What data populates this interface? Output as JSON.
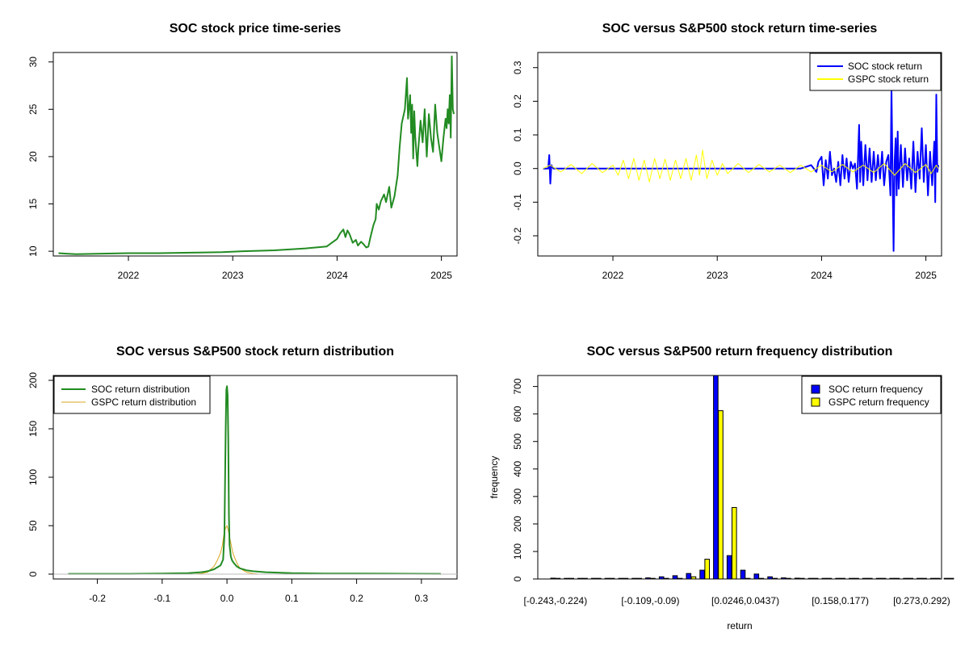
{
  "chart_data": [
    {
      "id": "p1",
      "type": "line",
      "title": "SOC stock price time-series",
      "xlabel": "",
      "ylabel": "",
      "xlim": [
        2021.28,
        2025.15
      ],
      "ylim": [
        9.5,
        31
      ],
      "xticks": [
        {
          "v": 2022,
          "label": "2022"
        },
        {
          "v": 2023,
          "label": "2023"
        },
        {
          "v": 2024,
          "label": "2024"
        },
        {
          "v": 2025,
          "label": "2025"
        }
      ],
      "yticks": [
        {
          "v": 10,
          "label": "10"
        },
        {
          "v": 15,
          "label": "15"
        },
        {
          "v": 20,
          "label": "20"
        },
        {
          "v": 25,
          "label": "25"
        },
        {
          "v": 30,
          "label": "30"
        }
      ],
      "series": [
        {
          "name": "SOC price",
          "color": "#228B22",
          "x": [
            2021.33,
            2021.4,
            2021.5,
            2021.75,
            2022.0,
            2022.3,
            2022.6,
            2022.9,
            2023.1,
            2023.4,
            2023.7,
            2023.9,
            2023.95,
            2024.0,
            2024.03,
            2024.06,
            2024.08,
            2024.1,
            2024.12,
            2024.15,
            2024.18,
            2024.2,
            2024.23,
            2024.25,
            2024.28,
            2024.3,
            2024.32,
            2024.35,
            2024.37,
            2024.38,
            2024.4,
            2024.42,
            2024.45,
            2024.47,
            2024.5,
            2024.52,
            2024.55,
            2024.58,
            2024.6,
            2024.62,
            2024.65,
            2024.67,
            2024.68,
            2024.7,
            2024.71,
            2024.72,
            2024.73,
            2024.74,
            2024.75,
            2024.77,
            2024.78,
            2024.8,
            2024.82,
            2024.84,
            2024.86,
            2024.88,
            2024.9,
            2024.92,
            2024.94,
            2024.96,
            2024.98,
            2025.0,
            2025.02,
            2025.04,
            2025.05,
            2025.06,
            2025.07,
            2025.08,
            2025.09,
            2025.1,
            2025.11,
            2025.12
          ],
          "y": [
            9.8,
            9.75,
            9.7,
            9.75,
            9.8,
            9.8,
            9.85,
            9.9,
            10.0,
            10.1,
            10.3,
            10.5,
            10.9,
            11.3,
            11.9,
            12.3,
            11.5,
            12.2,
            11.8,
            10.9,
            11.2,
            10.6,
            11.0,
            10.8,
            10.4,
            10.5,
            11.5,
            12.8,
            13.4,
            15.0,
            14.4,
            15.3,
            16.0,
            15.2,
            16.8,
            14.6,
            15.8,
            18.0,
            21.0,
            23.5,
            25.0,
            28.3,
            24.0,
            26.5,
            22.5,
            25.5,
            19.8,
            24.8,
            22.0,
            19.0,
            21.0,
            23.8,
            21.5,
            25.0,
            20.0,
            24.5,
            22.0,
            20.5,
            25.5,
            22.5,
            21.0,
            19.5,
            22.0,
            24.0,
            23.0,
            25.0,
            23.5,
            26.5,
            22.0,
            30.6,
            25.0,
            24.5
          ]
        }
      ]
    },
    {
      "id": "p2",
      "type": "line",
      "title": "SOC versus S&P500 stock return time-series",
      "xlabel": "",
      "ylabel": "",
      "xlim": [
        2021.28,
        2025.15
      ],
      "ylim": [
        -0.26,
        0.345
      ],
      "xticks": [
        {
          "v": 2022,
          "label": "2022"
        },
        {
          "v": 2023,
          "label": "2023"
        },
        {
          "v": 2024,
          "label": "2024"
        },
        {
          "v": 2025,
          "label": "2025"
        }
      ],
      "yticks": [
        {
          "v": -0.2,
          "label": "-0.2"
        },
        {
          "v": -0.1,
          "label": "-0.1"
        },
        {
          "v": 0.0,
          "label": "0.0"
        },
        {
          "v": 0.1,
          "label": "0.1"
        },
        {
          "v": 0.2,
          "label": "0.2"
        },
        {
          "v": 0.3,
          "label": "0.3"
        }
      ],
      "legend": {
        "position": "top-right",
        "entries": [
          {
            "label": "SOC stock return",
            "color": "#0000FF"
          },
          {
            "label": "GSPC stock return",
            "color": "#FFFF00"
          }
        ]
      },
      "series": [
        {
          "name": "SOC stock return",
          "color": "#0000FF",
          "width": 2,
          "x": [
            2021.33,
            2021.38,
            2021.39,
            2021.4,
            2021.41,
            2021.43,
            2021.5,
            2021.7,
            2022.0,
            2022.3,
            2022.6,
            2022.9,
            2023.2,
            2023.5,
            2023.8,
            2023.9,
            2023.95,
            2023.97,
            2024.0,
            2024.02,
            2024.04,
            2024.06,
            2024.08,
            2024.1,
            2024.12,
            2024.14,
            2024.16,
            2024.18,
            2024.2,
            2024.22,
            2024.24,
            2024.26,
            2024.28,
            2024.3,
            2024.32,
            2024.34,
            2024.36,
            2024.37,
            2024.38,
            2024.4,
            2024.42,
            2024.44,
            2024.46,
            2024.48,
            2024.5,
            2024.52,
            2024.54,
            2024.56,
            2024.58,
            2024.6,
            2024.62,
            2024.64,
            2024.66,
            2024.67,
            2024.68,
            2024.69,
            2024.7,
            2024.71,
            2024.72,
            2024.73,
            2024.74,
            2024.76,
            2024.78,
            2024.8,
            2024.82,
            2024.84,
            2024.86,
            2024.88,
            2024.9,
            2024.92,
            2024.94,
            2024.96,
            2024.98,
            2025.0,
            2025.02,
            2025.04,
            2025.06,
            2025.08,
            2025.09,
            2025.1,
            2025.11,
            2025.12
          ],
          "y": [
            0.0,
            0.0,
            0.04,
            -0.045,
            0.01,
            0.0,
            0.0,
            0.0,
            0.0,
            0.0,
            0.0,
            0.0,
            0.0,
            0.0,
            0.0,
            0.01,
            -0.01,
            0.02,
            0.035,
            -0.05,
            0.025,
            -0.03,
            0.05,
            -0.02,
            0.0,
            -0.04,
            0.02,
            -0.05,
            0.04,
            -0.03,
            0.03,
            -0.04,
            0.02,
            0.0,
            0.015,
            -0.06,
            0.13,
            -0.04,
            0.08,
            -0.05,
            0.07,
            -0.035,
            0.06,
            -0.04,
            0.05,
            -0.035,
            0.04,
            -0.03,
            0.05,
            -0.05,
            0.02,
            0.04,
            -0.08,
            0.24,
            -0.01,
            -0.245,
            0.02,
            0.09,
            -0.08,
            0.11,
            -0.06,
            0.07,
            -0.055,
            0.06,
            -0.035,
            0.03,
            -0.06,
            0.08,
            -0.07,
            0.05,
            -0.03,
            0.12,
            -0.04,
            0.07,
            -0.08,
            0.05,
            -0.05,
            0.08,
            -0.1,
            0.22,
            -0.01,
            0.01
          ]
        },
        {
          "name": "GSPC stock return",
          "color": "#FFFF00",
          "width": 1,
          "x": [
            2021.33,
            2021.4,
            2021.5,
            2021.6,
            2021.7,
            2021.8,
            2021.9,
            2022.0,
            2022.05,
            2022.1,
            2022.15,
            2022.2,
            2022.25,
            2022.3,
            2022.35,
            2022.4,
            2022.45,
            2022.5,
            2022.55,
            2022.6,
            2022.65,
            2022.7,
            2022.75,
            2022.8,
            2022.83,
            2022.86,
            2022.9,
            2022.95,
            2023.0,
            2023.05,
            2023.1,
            2023.2,
            2023.3,
            2023.4,
            2023.5,
            2023.6,
            2023.7,
            2023.8,
            2023.9,
            2024.0,
            2024.1,
            2024.2,
            2024.3,
            2024.4,
            2024.5,
            2024.6,
            2024.7,
            2024.8,
            2024.9,
            2025.0,
            2025.05,
            2025.1,
            2025.12
          ],
          "y": [
            0.0,
            0.01,
            -0.01,
            0.012,
            -0.015,
            0.015,
            -0.012,
            0.01,
            -0.02,
            0.025,
            -0.03,
            0.03,
            -0.035,
            0.025,
            -0.04,
            0.03,
            -0.03,
            0.028,
            -0.035,
            0.025,
            -0.03,
            0.03,
            -0.035,
            0.04,
            -0.02,
            0.055,
            -0.03,
            0.025,
            -0.02,
            0.015,
            -0.015,
            0.015,
            -0.012,
            0.012,
            -0.01,
            0.01,
            -0.012,
            0.01,
            -0.01,
            0.01,
            -0.01,
            0.012,
            -0.01,
            0.01,
            -0.012,
            0.015,
            -0.02,
            0.015,
            -0.012,
            0.012,
            -0.015,
            0.01,
            0.0
          ]
        }
      ]
    },
    {
      "id": "p3",
      "type": "line",
      "title": "SOC versus S&P500 stock return distribution",
      "xlabel": "",
      "ylabel": "",
      "xlim": [
        -0.268,
        0.355
      ],
      "ylim": [
        -5,
        205
      ],
      "xticks": [
        {
          "v": -0.2,
          "label": "-0.2"
        },
        {
          "v": -0.1,
          "label": "-0.1"
        },
        {
          "v": 0.0,
          "label": "0.0"
        },
        {
          "v": 0.1,
          "label": "0.1"
        },
        {
          "v": 0.2,
          "label": "0.2"
        },
        {
          "v": 0.3,
          "label": "0.3"
        }
      ],
      "yticks": [
        {
          "v": 0,
          "label": "0"
        },
        {
          "v": 50,
          "label": "50"
        },
        {
          "v": 100,
          "label": "100"
        },
        {
          "v": 150,
          "label": "150"
        },
        {
          "v": 200,
          "label": "200"
        }
      ],
      "legend": {
        "position": "top-left",
        "entries": [
          {
            "label": "SOC return distribution",
            "color": "#228B22"
          },
          {
            "label": "GSPC return distribution",
            "color": "#DAA520"
          }
        ]
      },
      "series": [
        {
          "name": "GSPC return distribution",
          "color": "#DAA520",
          "width": 1,
          "x": [
            -0.05,
            -0.04,
            -0.03,
            -0.02,
            -0.015,
            -0.01,
            -0.007,
            -0.005,
            -0.003,
            -0.001,
            0.0,
            0.002,
            0.004,
            0.006,
            0.008,
            0.01,
            0.015,
            0.02,
            0.03,
            0.04,
            0.05
          ],
          "y": [
            0,
            0.5,
            2,
            8,
            14,
            22,
            30,
            40,
            46,
            49,
            50,
            45,
            38,
            32,
            25,
            20,
            12,
            6,
            2,
            0.5,
            0
          ]
        },
        {
          "name": "SOC return distribution",
          "color": "#228B22",
          "width": 2,
          "x": [
            -0.245,
            -0.15,
            -0.1,
            -0.06,
            -0.04,
            -0.03,
            -0.02,
            -0.01,
            -0.006,
            -0.004,
            -0.003,
            -0.002,
            -0.001,
            0.0,
            0.001,
            0.002,
            0.003,
            0.004,
            0.006,
            0.008,
            0.01,
            0.015,
            0.02,
            0.03,
            0.04,
            0.06,
            0.1,
            0.15,
            0.2,
            0.25,
            0.33
          ],
          "y": [
            0.3,
            0.3,
            0.6,
            1.0,
            2.0,
            3.0,
            5.0,
            9.0,
            15.0,
            40.0,
            95.0,
            150.0,
            190.0,
            194.0,
            185.0,
            140.0,
            60.0,
            30.0,
            18.0,
            14.0,
            12.0,
            8.0,
            6.0,
            4.0,
            3.0,
            2.0,
            1.0,
            0.6,
            0.6,
            0.5,
            0.3
          ]
        }
      ]
    },
    {
      "id": "p4",
      "type": "bar",
      "title": "SOC versus S&P500 return frequency distribution",
      "xlabel": "return",
      "ylabel": "frequency",
      "ylim": [
        0,
        740
      ],
      "yticks": [
        {
          "v": 0,
          "label": "0"
        },
        {
          "v": 100,
          "label": "100"
        },
        {
          "v": 200,
          "label": "200"
        },
        {
          "v": 300,
          "label": "300"
        },
        {
          "v": 400,
          "label": "400"
        },
        {
          "v": 500,
          "label": "500"
        },
        {
          "v": 600,
          "label": "600"
        },
        {
          "v": 700,
          "label": "700"
        }
      ],
      "xtick_labels": [
        {
          "index": 0,
          "label": "[-0.243,-0.224)"
        },
        {
          "index": 7,
          "label": "[-0.109,-0.09)"
        },
        {
          "index": 14,
          "label": "[0.0246,0.0437)"
        },
        {
          "index": 21,
          "label": "[0.158,0.177)"
        },
        {
          "index": 27,
          "label": "[0.273,0.292)"
        }
      ],
      "legend": {
        "position": "top-right",
        "entries": [
          {
            "label": "SOC return frequency",
            "color": "#0000FF"
          },
          {
            "label": "GSPC return frequency",
            "color": "#FFFF00"
          }
        ]
      },
      "series": [
        {
          "name": "SOC return frequency",
          "color": "#0000FF",
          "values": [
            3,
            1,
            1,
            1,
            1,
            1,
            2,
            4,
            8,
            12,
            20,
            32,
            750,
            85,
            32,
            18,
            8,
            4,
            3,
            2,
            1,
            1,
            1,
            1,
            1,
            2,
            1,
            1,
            1,
            1
          ]
        },
        {
          "name": "GSPC return frequency",
          "color": "#FFFF00",
          "values": [
            0,
            0,
            0,
            0,
            0,
            0,
            0,
            0,
            0,
            0,
            8,
            72,
            612,
            260,
            0,
            0,
            0,
            0,
            0,
            0,
            0,
            0,
            0,
            0,
            0,
            0,
            0,
            0,
            0,
            0
          ]
        }
      ]
    }
  ]
}
